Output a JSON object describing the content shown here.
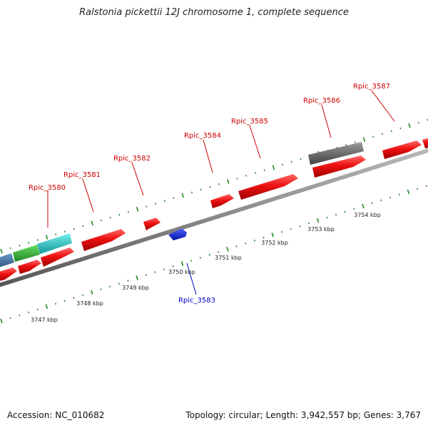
{
  "title": "Ralstonia pickettii 12J chromosome 1, complete sequence",
  "footer": {
    "accession": "Accession: NC_010682",
    "summary": "Topology: circular; Length: 3,942,557 bp; Genes: 3,767"
  },
  "colors": {
    "gene_red": "#ee1111",
    "gene_blue": "#1133dd",
    "gene_gray": "#666666",
    "gene_green": "#33bb33",
    "gene_cyan": "#22cccc",
    "gene_steel": "#4477aa",
    "tick_green": "#228822",
    "upper_label": "#cc0000",
    "lower_label": "#0000cc"
  },
  "gene_labels": [
    {
      "id": "rpic-3580",
      "text": "Rpic_3580",
      "strand": "plus"
    },
    {
      "id": "rpic-3581",
      "text": "Rpic_3581",
      "strand": "plus"
    },
    {
      "id": "rpic-3582",
      "text": "Rpic_3582",
      "strand": "plus"
    },
    {
      "id": "rpic-3584",
      "text": "Rpic_3584",
      "strand": "plus"
    },
    {
      "id": "rpic-3585",
      "text": "Rpic_3585",
      "strand": "plus"
    },
    {
      "id": "rpic-3586",
      "text": "Rpic_3586",
      "strand": "plus"
    },
    {
      "id": "rpic-3587",
      "text": "Rpic_3587",
      "strand": "plus"
    },
    {
      "id": "rpic-3583",
      "text": "Rpic_3583",
      "strand": "minus"
    }
  ],
  "scale_labels": [
    "3747 kbp",
    "3748 kbp",
    "3749 kbp",
    "3750 kbp",
    "3751 kbp",
    "3752 kbp",
    "3753 kbp",
    "3754 kbp"
  ]
}
